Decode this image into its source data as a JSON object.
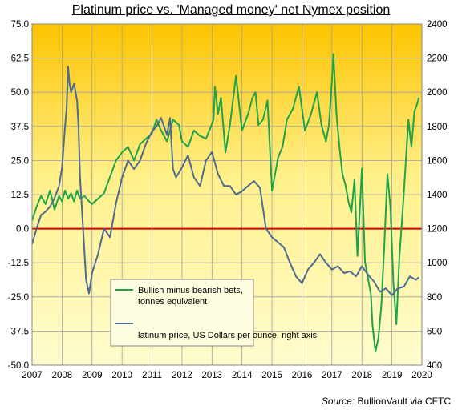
{
  "chart_data": {
    "type": "line",
    "title": "Platinum price vs. 'Managed money' net Nymex position",
    "source_label": "Source:",
    "source_text": "BullionVault via CFTC",
    "x_ticks": [
      "2007",
      "2008",
      "2009",
      "2010",
      "2011",
      "2012",
      "2013",
      "2014",
      "2015",
      "2016",
      "2017",
      "2018",
      "2019",
      "2020"
    ],
    "xlim": [
      2007,
      2020
    ],
    "left_axis": {
      "ylim": [
        -50,
        75
      ],
      "ticks": [
        "75.0",
        "62.5",
        "50.0",
        "37.5",
        "25.0",
        "12.5",
        "0.0",
        "-12.5",
        "-25.0",
        "-37.5",
        "-50.0"
      ],
      "tick_values": [
        75,
        62.5,
        50,
        37.5,
        25,
        12.5,
        0,
        -12.5,
        -25,
        -37.5,
        -50
      ]
    },
    "right_axis": {
      "ylim": [
        400,
        2400
      ],
      "ticks": [
        "2400",
        "2200",
        "2000",
        "1800",
        "1600",
        "1400",
        "1200",
        "1000",
        "800",
        "600",
        "400"
      ],
      "tick_values": [
        2400,
        2200,
        2000,
        1800,
        1600,
        1400,
        1200,
        1000,
        800,
        600,
        400
      ]
    },
    "zero_line": 0,
    "legend_position": "bottom-left",
    "series": [
      {
        "name": "Bullish minus bearish bets, tonnes equivalent",
        "axis": "left",
        "color": "#1ea34a",
        "x": [
          2007.0,
          2007.15,
          2007.3,
          2007.45,
          2007.6,
          2007.75,
          2007.9,
          2008.0,
          2008.1,
          2008.2,
          2008.3,
          2008.4,
          2008.5,
          2008.6,
          2008.75,
          2008.9,
          2009.0,
          2009.2,
          2009.4,
          2009.6,
          2009.8,
          2010.0,
          2010.2,
          2010.4,
          2010.6,
          2010.8,
          2011.0,
          2011.15,
          2011.3,
          2011.5,
          2011.7,
          2011.9,
          2012.0,
          2012.2,
          2012.4,
          2012.6,
          2012.8,
          2012.95,
          2013.05,
          2013.1,
          2013.2,
          2013.3,
          2013.45,
          2013.6,
          2013.8,
          2014.0,
          2014.2,
          2014.35,
          2014.45,
          2014.55,
          2014.7,
          2014.85,
          2015.0,
          2015.2,
          2015.35,
          2015.5,
          2015.7,
          2015.9,
          2016.1,
          2016.3,
          2016.5,
          2016.65,
          2016.8,
          2016.9,
          2017.0,
          2017.05,
          2017.15,
          2017.25,
          2017.35,
          2017.45,
          2017.55,
          2017.65,
          2017.75,
          2017.85,
          2018.0,
          2018.1,
          2018.2,
          2018.3,
          2018.35,
          2018.45,
          2018.55,
          2018.65,
          2018.75,
          2018.85,
          2018.95,
          2019.05,
          2019.15,
          2019.25,
          2019.35,
          2019.45,
          2019.55,
          2019.65,
          2019.75,
          2019.85,
          2019.9
        ],
        "values": [
          3,
          8,
          12,
          9,
          14,
          7,
          12,
          10,
          14,
          11,
          13,
          10,
          14,
          11,
          12,
          10,
          9,
          11,
          13,
          19,
          25,
          28,
          30,
          25,
          31,
          33,
          35,
          40,
          36,
          32,
          40,
          38,
          32,
          30,
          36,
          34,
          33,
          37,
          40,
          52,
          42,
          48,
          28,
          38,
          56,
          36,
          42,
          48,
          50,
          38,
          40,
          47,
          14,
          26,
          30,
          40,
          44,
          52,
          36,
          42,
          50,
          38,
          32,
          38,
          54,
          64,
          42,
          30,
          20,
          16,
          10,
          6,
          18,
          -10,
          22,
          -12,
          -18,
          -24,
          -35,
          -45,
          -40,
          -28,
          -5,
          20,
          8,
          -20,
          -35,
          -10,
          5,
          22,
          40,
          30,
          43,
          46,
          48
        ]
      },
      {
        "name": "Platinum price, US Dollars per ounce, right axis",
        "axis": "right",
        "color": "#4d6a8f",
        "x": [
          2007.0,
          2007.15,
          2007.3,
          2007.45,
          2007.6,
          2007.75,
          2007.9,
          2008.0,
          2008.1,
          2008.15,
          2008.2,
          2008.25,
          2008.3,
          2008.4,
          2008.5,
          2008.55,
          2008.6,
          2008.7,
          2008.8,
          2008.9,
          2009.0,
          2009.2,
          2009.4,
          2009.6,
          2009.8,
          2010.0,
          2010.2,
          2010.4,
          2010.6,
          2010.8,
          2011.0,
          2011.15,
          2011.3,
          2011.5,
          2011.6,
          2011.7,
          2011.8,
          2012.0,
          2012.2,
          2012.4,
          2012.6,
          2012.8,
          2013.0,
          2013.2,
          2013.4,
          2013.6,
          2013.8,
          2014.0,
          2014.2,
          2014.4,
          2014.6,
          2014.8,
          2015.0,
          2015.2,
          2015.4,
          2015.6,
          2015.8,
          2016.0,
          2016.2,
          2016.4,
          2016.6,
          2016.8,
          2017.0,
          2017.2,
          2017.4,
          2017.6,
          2017.8,
          2018.0,
          2018.2,
          2018.4,
          2018.6,
          2018.8,
          2019.0,
          2019.2,
          2019.4,
          2019.6,
          2019.8,
          2019.9
        ],
        "values": [
          1110,
          1200,
          1280,
          1300,
          1330,
          1380,
          1450,
          1560,
          1800,
          1900,
          2150,
          2050,
          2000,
          2050,
          1950,
          1800,
          1500,
          1200,
          900,
          820,
          940,
          1050,
          1200,
          1150,
          1350,
          1500,
          1600,
          1550,
          1600,
          1700,
          1770,
          1800,
          1850,
          1750,
          1850,
          1550,
          1500,
          1560,
          1630,
          1500,
          1450,
          1600,
          1650,
          1520,
          1450,
          1450,
          1400,
          1420,
          1450,
          1480,
          1440,
          1200,
          1150,
          1120,
          1090,
          1000,
          920,
          880,
          960,
          1000,
          1050,
          1000,
          960,
          980,
          940,
          950,
          920,
          980,
          930,
          890,
          830,
          850,
          810,
          850,
          860,
          920,
          900,
          915
        ]
      }
    ]
  }
}
